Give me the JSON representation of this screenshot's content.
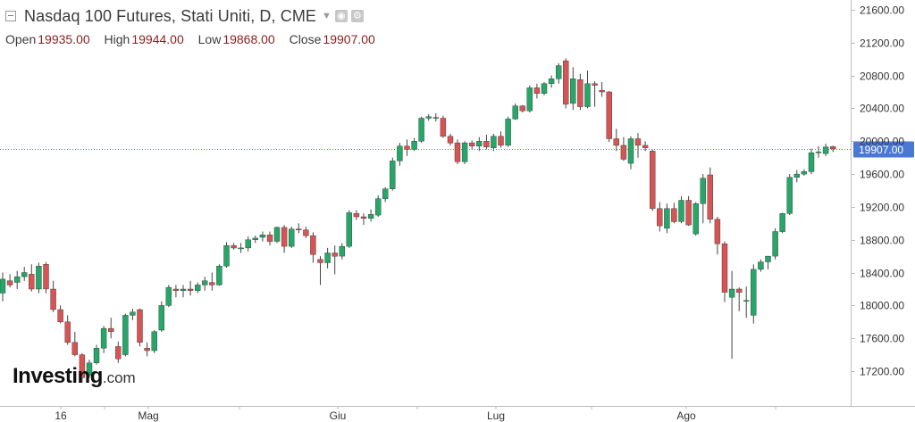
{
  "header": {
    "title": "Nasdaq 100 Futures, Stati Uniti, D, CME",
    "caret_icon": "chevron-down-icon",
    "tools": [
      "settings-icon",
      "gear-icon"
    ],
    "ohlc": {
      "open_label": "Open",
      "open_value": "19935.00",
      "high_label": "High",
      "high_value": "19944.00",
      "low_label": "Low",
      "low_value": "19868.00",
      "close_label": "Close",
      "close_value": "19907.00"
    }
  },
  "logo": {
    "main": "Investing",
    "suffix": ".com"
  },
  "colors": {
    "up": "#26a668",
    "down": "#d75454",
    "wick": "#444444",
    "price_line": "#5a7fd6",
    "price_badge": "#4a78d6",
    "axis": "#bdbdbd",
    "text": "#333333"
  },
  "chart_data": {
    "type": "candlestick",
    "title": "Nasdaq 100 Futures, Stati Uniti, D, CME",
    "y_axis": {
      "side": "right",
      "range": [
        16960,
        21720
      ],
      "ticks": [
        "21600.00",
        "21200.00",
        "20800.00",
        "20400.00",
        "20000.00",
        "19600.00",
        "19200.00",
        "18800.00",
        "18400.00",
        "18000.00",
        "17600.00",
        "17200.00"
      ]
    },
    "x_axis": {
      "tick_labels": [
        "16",
        "Mag",
        "Giu",
        "Lug",
        "Ago"
      ]
    },
    "last_price": "19907.00",
    "ohlc": [
      [
        18150,
        18400,
        18050,
        18320
      ],
      [
        18300,
        18380,
        18220,
        18250
      ],
      [
        18280,
        18420,
        18200,
        18350
      ],
      [
        18350,
        18470,
        18300,
        18400
      ],
      [
        18380,
        18500,
        18170,
        18200
      ],
      [
        18200,
        18520,
        18150,
        18480
      ],
      [
        18500,
        18530,
        18150,
        18200
      ],
      [
        18200,
        18300,
        17920,
        17950
      ],
      [
        17950,
        18000,
        17780,
        17800
      ],
      [
        17800,
        17880,
        17520,
        17550
      ],
      [
        17550,
        17680,
        17380,
        17400
      ],
      [
        17400,
        17420,
        17060,
        17120
      ],
      [
        17150,
        17340,
        17120,
        17300
      ],
      [
        17300,
        17520,
        17280,
        17480
      ],
      [
        17480,
        17750,
        17420,
        17720
      ],
      [
        17720,
        17850,
        17600,
        17680
      ],
      [
        17500,
        17560,
        17300,
        17350
      ],
      [
        17400,
        17900,
        17380,
        17880
      ],
      [
        17880,
        17960,
        17820,
        17920
      ],
      [
        17950,
        17960,
        17500,
        17550
      ],
      [
        17480,
        17550,
        17380,
        17450
      ],
      [
        17450,
        17700,
        17420,
        17680
      ],
      [
        17700,
        18050,
        17680,
        18000
      ],
      [
        18000,
        18250,
        17980,
        18220
      ],
      [
        18200,
        18250,
        18100,
        18180
      ],
      [
        18180,
        18250,
        18100,
        18200
      ],
      [
        18200,
        18300,
        18120,
        18180
      ],
      [
        18180,
        18280,
        18150,
        18250
      ],
      [
        18250,
        18350,
        18180,
        18300
      ],
      [
        18280,
        18400,
        18180,
        18250
      ],
      [
        18250,
        18500,
        18240,
        18480
      ],
      [
        18480,
        18770,
        18460,
        18730
      ],
      [
        18730,
        18760,
        18680,
        18700
      ],
      [
        18700,
        18760,
        18640,
        18700
      ],
      [
        18700,
        18840,
        18660,
        18800
      ],
      [
        18800,
        18850,
        18760,
        18820
      ],
      [
        18830,
        18900,
        18780,
        18860
      ],
      [
        18860,
        18900,
        18730,
        18780
      ],
      [
        18780,
        18960,
        18760,
        18950
      ],
      [
        18950,
        18980,
        18640,
        18720
      ],
      [
        18720,
        18960,
        18700,
        18930
      ],
      [
        18930,
        19000,
        18880,
        18920
      ],
      [
        18920,
        18960,
        18820,
        18850
      ],
      [
        18850,
        18890,
        18520,
        18620
      ],
      [
        18560,
        18600,
        18250,
        18520
      ],
      [
        18520,
        18700,
        18450,
        18640
      ],
      [
        18640,
        18730,
        18380,
        18600
      ],
      [
        18600,
        18760,
        18560,
        18720
      ],
      [
        18720,
        19160,
        18700,
        19130
      ],
      [
        19120,
        19160,
        19040,
        19080
      ],
      [
        19080,
        19120,
        18980,
        19060
      ],
      [
        19060,
        19170,
        19020,
        19110
      ],
      [
        19100,
        19340,
        19080,
        19300
      ],
      [
        19300,
        19440,
        19260,
        19420
      ],
      [
        19420,
        19800,
        19400,
        19760
      ],
      [
        19760,
        19980,
        19700,
        19940
      ],
      [
        19940,
        20020,
        19820,
        19900
      ],
      [
        19900,
        20040,
        19880,
        20000
      ],
      [
        20000,
        20300,
        19980,
        20280
      ],
      [
        20280,
        20330,
        20250,
        20300
      ],
      [
        20280,
        20340,
        20240,
        20290
      ],
      [
        20280,
        20310,
        20040,
        20060
      ],
      [
        20060,
        20090,
        19950,
        19980
      ],
      [
        19980,
        20020,
        19720,
        19750
      ],
      [
        19750,
        20000,
        19720,
        19980
      ],
      [
        19980,
        20010,
        19900,
        19940
      ],
      [
        19940,
        20050,
        19880,
        20000
      ],
      [
        20000,
        20080,
        19900,
        19930
      ],
      [
        19920,
        20090,
        19880,
        20060
      ],
      [
        20060,
        20120,
        19920,
        19950
      ],
      [
        19950,
        20300,
        19930,
        20270
      ],
      [
        20270,
        20460,
        20260,
        20430
      ],
      [
        20430,
        20440,
        20350,
        20370
      ],
      [
        20370,
        20680,
        20350,
        20650
      ],
      [
        20650,
        20700,
        20520,
        20580
      ],
      [
        20580,
        20720,
        20560,
        20700
      ],
      [
        20700,
        20800,
        20650,
        20760
      ],
      [
        20760,
        20950,
        20700,
        20920
      ],
      [
        20980,
        21010,
        20400,
        20450
      ],
      [
        20460,
        20900,
        20380,
        20760
      ],
      [
        20750,
        20820,
        20380,
        20420
      ],
      [
        20420,
        20860,
        20400,
        20700
      ],
      [
        20700,
        20730,
        20420,
        20680
      ],
      [
        20620,
        20720,
        20540,
        20600
      ],
      [
        20600,
        20610,
        19990,
        20030
      ],
      [
        20030,
        20150,
        19880,
        19950
      ],
      [
        19950,
        20050,
        19760,
        19780
      ],
      [
        19730,
        20060,
        19660,
        20030
      ],
      [
        20030,
        20100,
        19800,
        19950
      ],
      [
        19950,
        20000,
        19880,
        19920
      ],
      [
        19880,
        19900,
        19150,
        19180
      ],
      [
        19180,
        19260,
        18900,
        18970
      ],
      [
        18940,
        19240,
        18880,
        19180
      ],
      [
        19180,
        19250,
        19000,
        19020
      ],
      [
        19020,
        19330,
        19000,
        19280
      ],
      [
        19280,
        19330,
        18970,
        18980
      ],
      [
        18870,
        19260,
        18850,
        19240
      ],
      [
        19240,
        19600,
        19000,
        19550
      ],
      [
        19590,
        19680,
        19000,
        19050
      ],
      [
        19050,
        19080,
        18620,
        18750
      ],
      [
        18750,
        18780,
        18040,
        18160
      ],
      [
        18100,
        18420,
        17350,
        18200
      ],
      [
        18200,
        18220,
        17930,
        18160
      ],
      [
        18060,
        18230,
        17850,
        18060
      ],
      [
        17880,
        18500,
        17780,
        18440
      ],
      [
        18440,
        18560,
        18410,
        18530
      ],
      [
        18530,
        18600,
        18440,
        18600
      ],
      [
        18600,
        18940,
        18560,
        18900
      ],
      [
        18900,
        19130,
        18880,
        19120
      ],
      [
        19120,
        19600,
        19100,
        19560
      ],
      [
        19560,
        19650,
        19500,
        19600
      ],
      [
        19600,
        19660,
        19580,
        19630
      ],
      [
        19630,
        19910,
        19600,
        19860
      ],
      [
        19860,
        19940,
        19800,
        19870
      ],
      [
        19850,
        19970,
        19820,
        19930
      ],
      [
        19935,
        19944,
        19868,
        19907
      ]
    ]
  }
}
